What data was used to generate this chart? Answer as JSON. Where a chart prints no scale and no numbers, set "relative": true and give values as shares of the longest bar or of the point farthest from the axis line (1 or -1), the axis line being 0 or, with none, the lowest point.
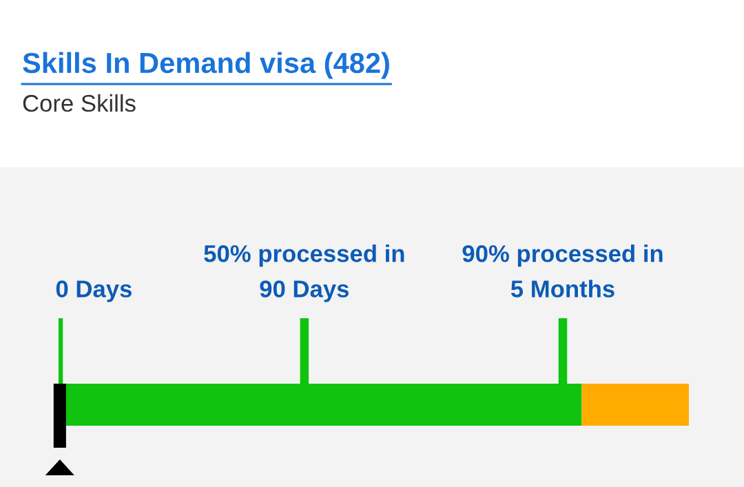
{
  "chart_data": {
    "type": "bar",
    "orientation": "horizontal",
    "stacked": true,
    "relative": true,
    "title": "Skills In Demand visa (482)",
    "subtitle": "Core Skills",
    "categories": [
      null
    ],
    "series": [
      {
        "color": "#0fc30f",
        "values": [
          0.83
        ]
      },
      {
        "color": "#ffab00",
        "values": [
          0.17
        ]
      }
    ],
    "ref_lines": [
      {
        "axis": "x",
        "value": 0,
        "label": "0 Days"
      },
      {
        "axis": "x",
        "value": 0.39,
        "label": "50% processed in\n90 Days"
      },
      {
        "axis": "x",
        "value": 0.8,
        "label": "90% processed in\n5 Months"
      }
    ]
  }
}
